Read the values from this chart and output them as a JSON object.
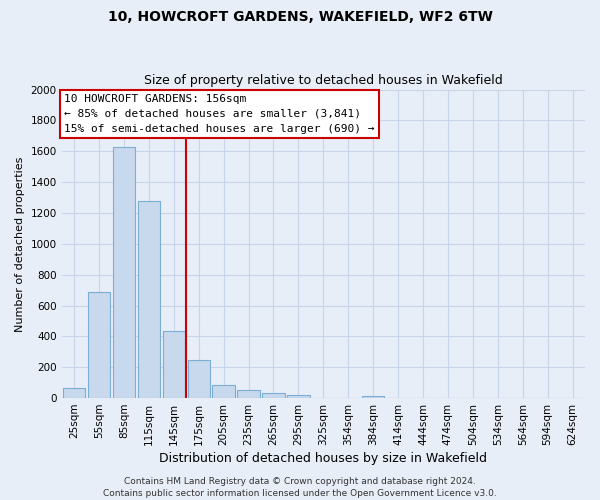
{
  "title": "10, HOWCROFT GARDENS, WAKEFIELD, WF2 6TW",
  "subtitle": "Size of property relative to detached houses in Wakefield",
  "xlabel": "Distribution of detached houses by size in Wakefield",
  "ylabel": "Number of detached properties",
  "bar_labels": [
    "25sqm",
    "55sqm",
    "85sqm",
    "115sqm",
    "145sqm",
    "175sqm",
    "205sqm",
    "235sqm",
    "265sqm",
    "295sqm",
    "325sqm",
    "354sqm",
    "384sqm",
    "414sqm",
    "444sqm",
    "474sqm",
    "504sqm",
    "534sqm",
    "564sqm",
    "594sqm",
    "624sqm"
  ],
  "bar_values": [
    65,
    690,
    1630,
    1280,
    435,
    250,
    85,
    50,
    30,
    20,
    0,
    0,
    15,
    0,
    0,
    0,
    0,
    0,
    0,
    0,
    0
  ],
  "bar_color": "#c8d8ed",
  "bar_edgecolor": "#7aaed4",
  "vline_color": "#cc0000",
  "vline_x_index": 4.5,
  "annotation_title": "10 HOWCROFT GARDENS: 156sqm",
  "annotation_line1": "← 85% of detached houses are smaller (3,841)",
  "annotation_line2": "15% of semi-detached houses are larger (690) →",
  "annotation_box_facecolor": "#ffffff",
  "annotation_box_edgecolor": "#cc0000",
  "ylim": [
    0,
    2000
  ],
  "yticks": [
    0,
    200,
    400,
    600,
    800,
    1000,
    1200,
    1400,
    1600,
    1800,
    2000
  ],
  "footer1": "Contains HM Land Registry data © Crown copyright and database right 2024.",
  "footer2": "Contains public sector information licensed under the Open Government Licence v3.0.",
  "background_color": "#e8eef8",
  "plot_bg_color": "#e8eef8",
  "grid_color": "#c8d4e8",
  "title_fontsize": 10,
  "subtitle_fontsize": 9,
  "xlabel_fontsize": 9,
  "ylabel_fontsize": 8,
  "tick_fontsize": 7.5,
  "annotation_fontsize": 8,
  "footer_fontsize": 6.5
}
